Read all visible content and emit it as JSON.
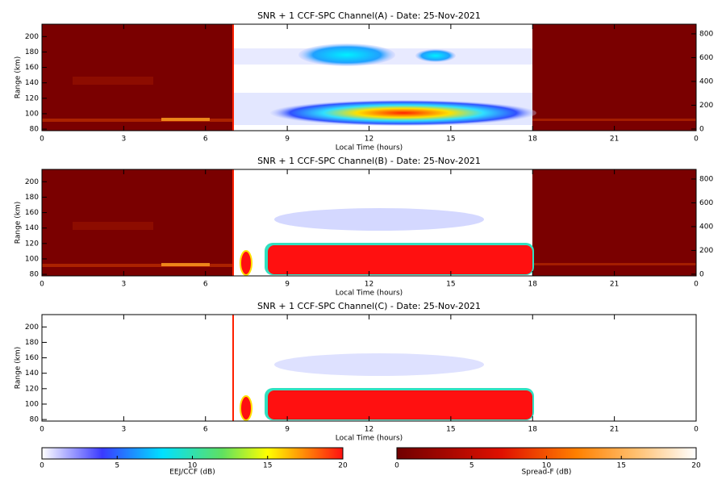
{
  "chart_data": [
    {
      "type": "heatmap",
      "title": "SNR + 1 CCF-SPC Channel(A) - Date: 25-Nov-2021",
      "xlabel": "Local Time (hours)",
      "ylabel": "Range (km)",
      "xlim": [
        0,
        24
      ],
      "xticks": [
        0,
        3,
        6,
        9,
        12,
        15,
        18,
        21,
        {
          "value": 24,
          "label": "0"
        }
      ],
      "ylim": [
        78,
        216
      ],
      "yticks": [
        80,
        100,
        120,
        140,
        160,
        180,
        200
      ],
      "y2lim": [
        -14,
        881
      ],
      "y2ticks": [
        0,
        200,
        400,
        600,
        800
      ]
    },
    {
      "type": "heatmap",
      "title": "SNR + 1 CCF-SPC Channel(B) - Date: 25-Nov-2021",
      "xlabel": "Local Time (hours)",
      "ylabel": "Range (km)",
      "xlim": [
        0,
        24
      ],
      "xticks": [
        0,
        3,
        6,
        9,
        12,
        15,
        18,
        21,
        {
          "value": 24,
          "label": "0"
        }
      ],
      "ylim": [
        78,
        216
      ],
      "yticks": [
        80,
        100,
        120,
        140,
        160,
        180,
        200
      ],
      "y2lim": [
        -14,
        881
      ],
      "y2ticks": [
        0,
        200,
        400,
        600,
        800
      ]
    },
    {
      "type": "heatmap",
      "title": "SNR + 1 CCF-SPC Channel(C) - Date: 25-Nov-2021",
      "xlabel": "Local Time (hours)",
      "ylabel": "Range (km)",
      "xlim": [
        0,
        24
      ],
      "xticks": [
        0,
        3,
        6,
        9,
        12,
        15,
        18,
        21,
        {
          "value": 24,
          "label": "0"
        }
      ],
      "ylim": [
        78,
        216
      ],
      "yticks": [
        80,
        100,
        120,
        140,
        160,
        180,
        200
      ]
    }
  ],
  "colorbars": [
    {
      "label": "EEJ/CCF (dB)",
      "lim": [
        0,
        20
      ],
      "ticks": [
        0,
        5,
        10,
        15,
        20
      ]
    },
    {
      "label": "Spread-F (dB)",
      "lim": [
        0,
        20
      ],
      "ticks": [
        0,
        5,
        10,
        15,
        20
      ]
    }
  ]
}
